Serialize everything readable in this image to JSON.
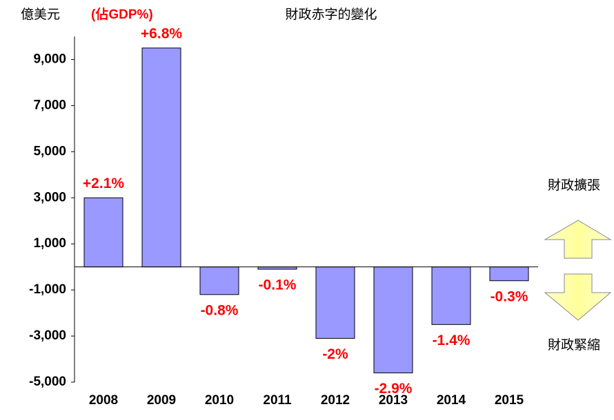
{
  "chart_data": {
    "type": "bar",
    "title": "財政赤字的變化",
    "y_axis_label": "億美元",
    "label_note": "(佔GDP%)",
    "categories": [
      "2008",
      "2009",
      "2010",
      "2011",
      "2012",
      "2013",
      "2014",
      "2015"
    ],
    "values": [
      3000,
      9500,
      -1200,
      -100,
      -3100,
      -4600,
      -2500,
      -600
    ],
    "bar_labels": [
      "+2.1%",
      "+6.8%",
      "-0.8%",
      "-0.1%",
      "-2%",
      "-2.9%",
      "-1.4%",
      "-0.3%"
    ],
    "color": "#9999ff",
    "label_color": "#ff0000",
    "ylim": [
      -5000,
      10000
    ],
    "yticks": [
      {
        "value": 9000,
        "label": "9,000"
      },
      {
        "value": 7000,
        "label": "7,000"
      },
      {
        "value": 5000,
        "label": "5,000"
      },
      {
        "value": 3000,
        "label": "3,000"
      },
      {
        "value": 1000,
        "label": "1,000"
      },
      {
        "value": -1000,
        "label": "-1,000"
      },
      {
        "value": -3000,
        "label": "-3,000"
      },
      {
        "value": -5000,
        "label": "-5,000"
      }
    ],
    "annotations": [
      "財政擴張",
      "財政緊縮"
    ]
  }
}
